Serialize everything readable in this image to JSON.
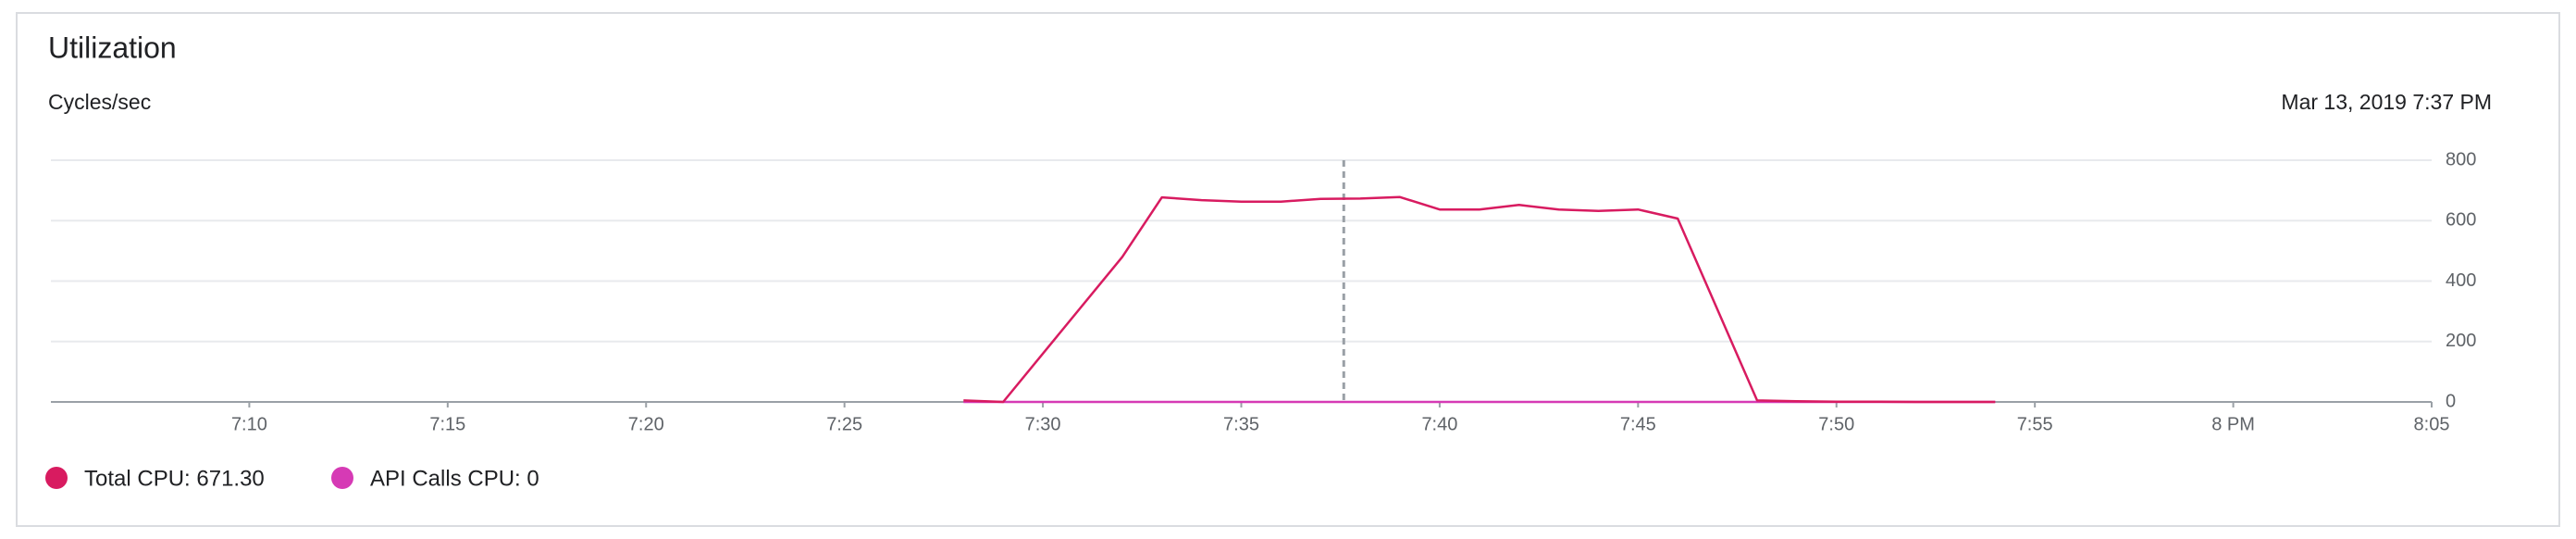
{
  "chart_data": {
    "type": "line",
    "title": "Utilization",
    "y_axis_label": "Cycles/sec",
    "timestamp": "Mar 13, 2019 7:37 PM",
    "cursor": "2019-03-13T19:37:35",
    "x": [
      "2019-03-13T19:28",
      "2019-03-13T19:29",
      "2019-03-13T19:32",
      "2019-03-13T19:33",
      "2019-03-13T19:34",
      "2019-03-13T19:35",
      "2019-03-13T19:36",
      "2019-03-13T19:37",
      "2019-03-13T19:38",
      "2019-03-13T19:39",
      "2019-03-13T19:40",
      "2019-03-13T19:41",
      "2019-03-13T19:42",
      "2019-03-13T19:43",
      "2019-03-13T19:44",
      "2019-03-13T19:45",
      "2019-03-13T19:46",
      "2019-03-13T19:48",
      "2019-03-13T19:49",
      "2019-03-13T19:50",
      "2019-03-13T19:51",
      "2019-03-13T19:52",
      "2019-03-13T19:53",
      "2019-03-13T19:54"
    ],
    "series": [
      {
        "name": "Total CPU: 671.30",
        "color": "#d81b60",
        "values": [
          5,
          0,
          480,
          677,
          668,
          663,
          663,
          672,
          673,
          678,
          637,
          637,
          652,
          637,
          632,
          637,
          607,
          5,
          2,
          1,
          1,
          0,
          0,
          0
        ]
      },
      {
        "name": "API Calls CPU: 0",
        "color": "#d63ab5",
        "values": [
          0,
          0,
          0,
          0,
          0,
          0,
          0,
          0,
          0,
          0,
          0,
          0,
          0,
          0,
          0,
          0,
          0,
          0,
          0,
          0,
          0,
          0,
          0,
          0
        ]
      }
    ],
    "xlim": [
      "2019-03-13T19:05",
      "2019-03-13T20:05"
    ],
    "xticks": [
      {
        "value": "2019-03-13T19:10",
        "label": "7:10"
      },
      {
        "value": "2019-03-13T19:15",
        "label": "7:15"
      },
      {
        "value": "2019-03-13T19:20",
        "label": "7:20"
      },
      {
        "value": "2019-03-13T19:25",
        "label": "7:25"
      },
      {
        "value": "2019-03-13T19:30",
        "label": "7:30"
      },
      {
        "value": "2019-03-13T19:35",
        "label": "7:35"
      },
      {
        "value": "2019-03-13T19:40",
        "label": "7:40"
      },
      {
        "value": "2019-03-13T19:45",
        "label": "7:45"
      },
      {
        "value": "2019-03-13T19:50",
        "label": "7:50"
      },
      {
        "value": "2019-03-13T19:55",
        "label": "7:55"
      },
      {
        "value": "2019-03-13T20:00",
        "label": "8 PM"
      },
      {
        "value": "2019-03-13T20:05",
        "label": "8:05"
      }
    ],
    "ylim": [
      0,
      800
    ],
    "yticks": [
      0,
      200,
      400,
      600,
      800
    ],
    "grid": true
  }
}
